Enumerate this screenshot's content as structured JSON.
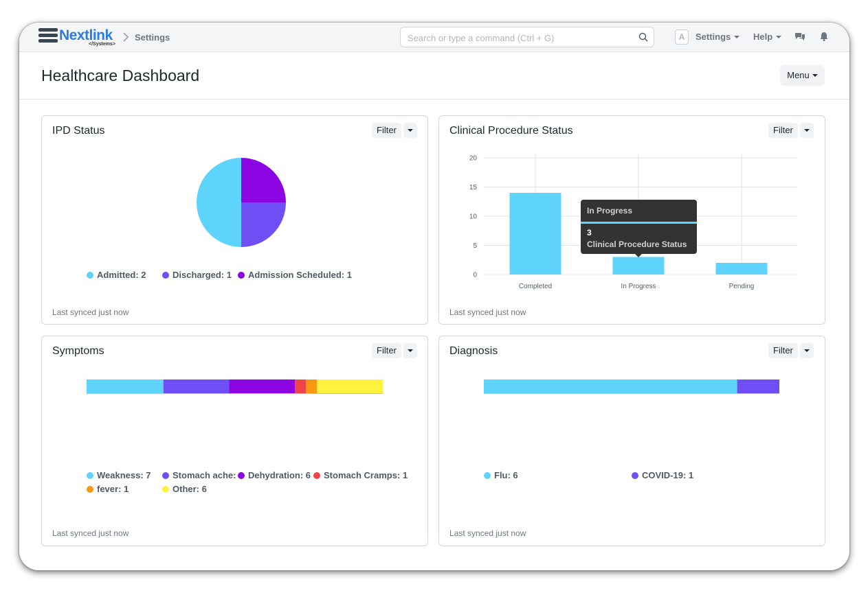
{
  "navbar": {
    "logo_text": "Nextlink",
    "logo_subtext": "</Systems>",
    "breadcrumb": "Settings",
    "search_placeholder": "Search or type a command (Ctrl + G)",
    "avatar_letter": "A",
    "settings_label": "Settings",
    "help_label": "Help"
  },
  "page": {
    "title": "Healthcare Dashboard",
    "menu_label": "Menu"
  },
  "colors": {
    "cyan": "#5ed3fc",
    "indigo": "#6f4ef6",
    "purple": "#8a05e1",
    "red": "#f0434a",
    "orange": "#f89710",
    "yellow": "#fff23e"
  },
  "cards": {
    "ipd": {
      "title": "IPD Status",
      "filter_label": "Filter",
      "synced": "Last synced just now",
      "legend": [
        {
          "label": "Admitted: 2",
          "color": "#5ed3fc"
        },
        {
          "label": "Discharged: 1",
          "color": "#6f4ef6"
        },
        {
          "label": "Admission Scheduled: 1",
          "color": "#8a05e1"
        }
      ]
    },
    "clinical": {
      "title": "Clinical Procedure Status",
      "filter_label": "Filter",
      "synced": "Last synced just now",
      "tooltip": {
        "title": "In Progress",
        "value": "3",
        "label": "Clinical Procedure Status"
      }
    },
    "symptoms": {
      "title": "Symptoms",
      "filter_label": "Filter",
      "synced": "Last synced just now",
      "legend": [
        {
          "label": "Weakness: 7",
          "color": "#5ed3fc"
        },
        {
          "label": "Stomach ache: 6",
          "color": "#6f4ef6"
        },
        {
          "label": "Dehydration: 6",
          "color": "#8a05e1"
        },
        {
          "label": "Stomach Cramps: 1",
          "color": "#f0434a"
        },
        {
          "label": "fever: 1",
          "color": "#f89710"
        },
        {
          "label": "Other: 6",
          "color": "#fff23e"
        }
      ]
    },
    "diagnosis": {
      "title": "Diagnosis",
      "filter_label": "Filter",
      "synced": "Last synced just now",
      "legend": [
        {
          "label": "Flu: 6",
          "color": "#5ed3fc"
        },
        {
          "label": "COVID-19: 1",
          "color": "#6f4ef6"
        }
      ]
    }
  },
  "chart_data": [
    {
      "type": "pie",
      "title": "IPD Status",
      "categories": [
        "Admitted",
        "Discharged",
        "Admission Scheduled"
      ],
      "values": [
        2,
        1,
        1
      ],
      "colors": [
        "#5ed3fc",
        "#6f4ef6",
        "#8a05e1"
      ]
    },
    {
      "type": "bar",
      "title": "Clinical Procedure Status",
      "categories": [
        "Completed",
        "In Progress",
        "Pending"
      ],
      "values": [
        14,
        3,
        2
      ],
      "ylim": [
        0,
        20
      ],
      "yticks": [
        0,
        5,
        10,
        15,
        20
      ],
      "color": "#5ed3fc"
    },
    {
      "type": "bar",
      "title": "Symptoms",
      "orientation": "stacked-percentage",
      "categories": [
        "Weakness",
        "Stomach ache",
        "Dehydration",
        "Stomach Cramps",
        "fever",
        "Other"
      ],
      "values": [
        7,
        6,
        6,
        1,
        1,
        6
      ]
    },
    {
      "type": "bar",
      "title": "Diagnosis",
      "orientation": "stacked-percentage",
      "categories": [
        "Flu",
        "COVID-19"
      ],
      "values": [
        6,
        1
      ]
    }
  ]
}
